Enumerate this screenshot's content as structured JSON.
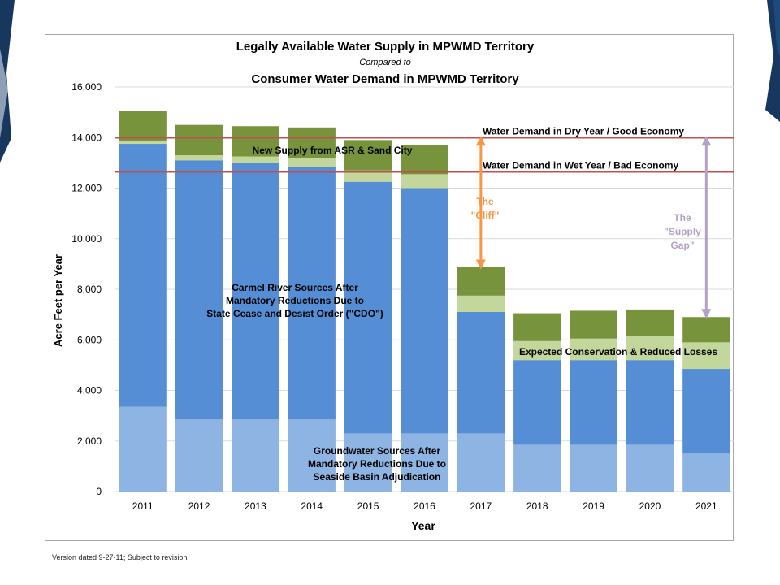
{
  "footnote": "Version dated 9-27-11; Subject to revision",
  "colors": {
    "groundwater": "#8eb4e3",
    "carmel": "#558ed5",
    "conservation": "#c3d69b",
    "new_supply": "#77933c",
    "demand_line": "#c0504d",
    "cliff_arrow": "#f79646",
    "gap_arrow": "#b3a2c7",
    "corner_dark": "#17375e",
    "corner_mid": "#1f497d",
    "corner_light": "#dbe5f1"
  },
  "chart_data": {
    "type": "bar",
    "stacked": true,
    "title": "Legally Available Water Supply in MPWMD Territory",
    "subtitle": "Compared to",
    "title2": "Consumer Water Demand in MPWMD Territory",
    "xlabel": "Year",
    "ylabel": "Acre Feet per Year",
    "ylim": [
      0,
      16000
    ],
    "yticks": [
      0,
      2000,
      4000,
      6000,
      8000,
      10000,
      12000,
      14000,
      16000
    ],
    "ytick_labels": [
      "0",
      "2,000",
      "4,000",
      "6,000",
      "8,000",
      "10,000",
      "12,000",
      "14,000",
      "16,000"
    ],
    "grid": true,
    "categories": [
      "2011",
      "2012",
      "2013",
      "2014",
      "2015",
      "2016",
      "2017",
      "2018",
      "2019",
      "2020",
      "2021"
    ],
    "series": [
      {
        "key": "groundwater",
        "values": [
          3350,
          2850,
          2850,
          2850,
          2300,
          2300,
          2300,
          1850,
          1850,
          1850,
          1500
        ]
      },
      {
        "key": "carmel",
        "values": [
          10400,
          10250,
          10150,
          10000,
          9950,
          9700,
          4800,
          3350,
          3350,
          3350,
          3350
        ]
      },
      {
        "key": "conservation",
        "values": [
          100,
          200,
          250,
          350,
          450,
          550,
          650,
          750,
          850,
          950,
          1050
        ]
      },
      {
        "key": "new_supply",
        "values": [
          1200,
          1200,
          1200,
          1200,
          1200,
          1150,
          1150,
          1100,
          1100,
          1050,
          1000
        ]
      }
    ],
    "reference_lines": [
      {
        "label": "Water Demand in Dry Year / Good Economy",
        "value": 14000
      },
      {
        "label": "Water Demand in Wet Year / Bad Economy",
        "value": 12650
      }
    ],
    "annotations": {
      "new_supply": "New Supply from ASR & Sand City",
      "carmel": [
        "Carmel River Sources After",
        "Mandatory Reductions Due to",
        "State Cease and Desist Order (\"CDO\")"
      ],
      "groundwater": [
        "Groundwater Sources After",
        "Mandatory Reductions Due to",
        "Seaside Basin Adjudication"
      ],
      "conservation": "Expected Conservation & Reduced Losses",
      "cliff": [
        "The",
        "\"Cliff\""
      ],
      "gap": [
        "The",
        "\"Supply",
        "Gap\""
      ]
    },
    "cliff_arrow": {
      "category": "2017",
      "from": 8850,
      "to": 14000
    },
    "gap_arrow": {
      "category": "2021",
      "from": 6900,
      "to": 14000
    }
  }
}
